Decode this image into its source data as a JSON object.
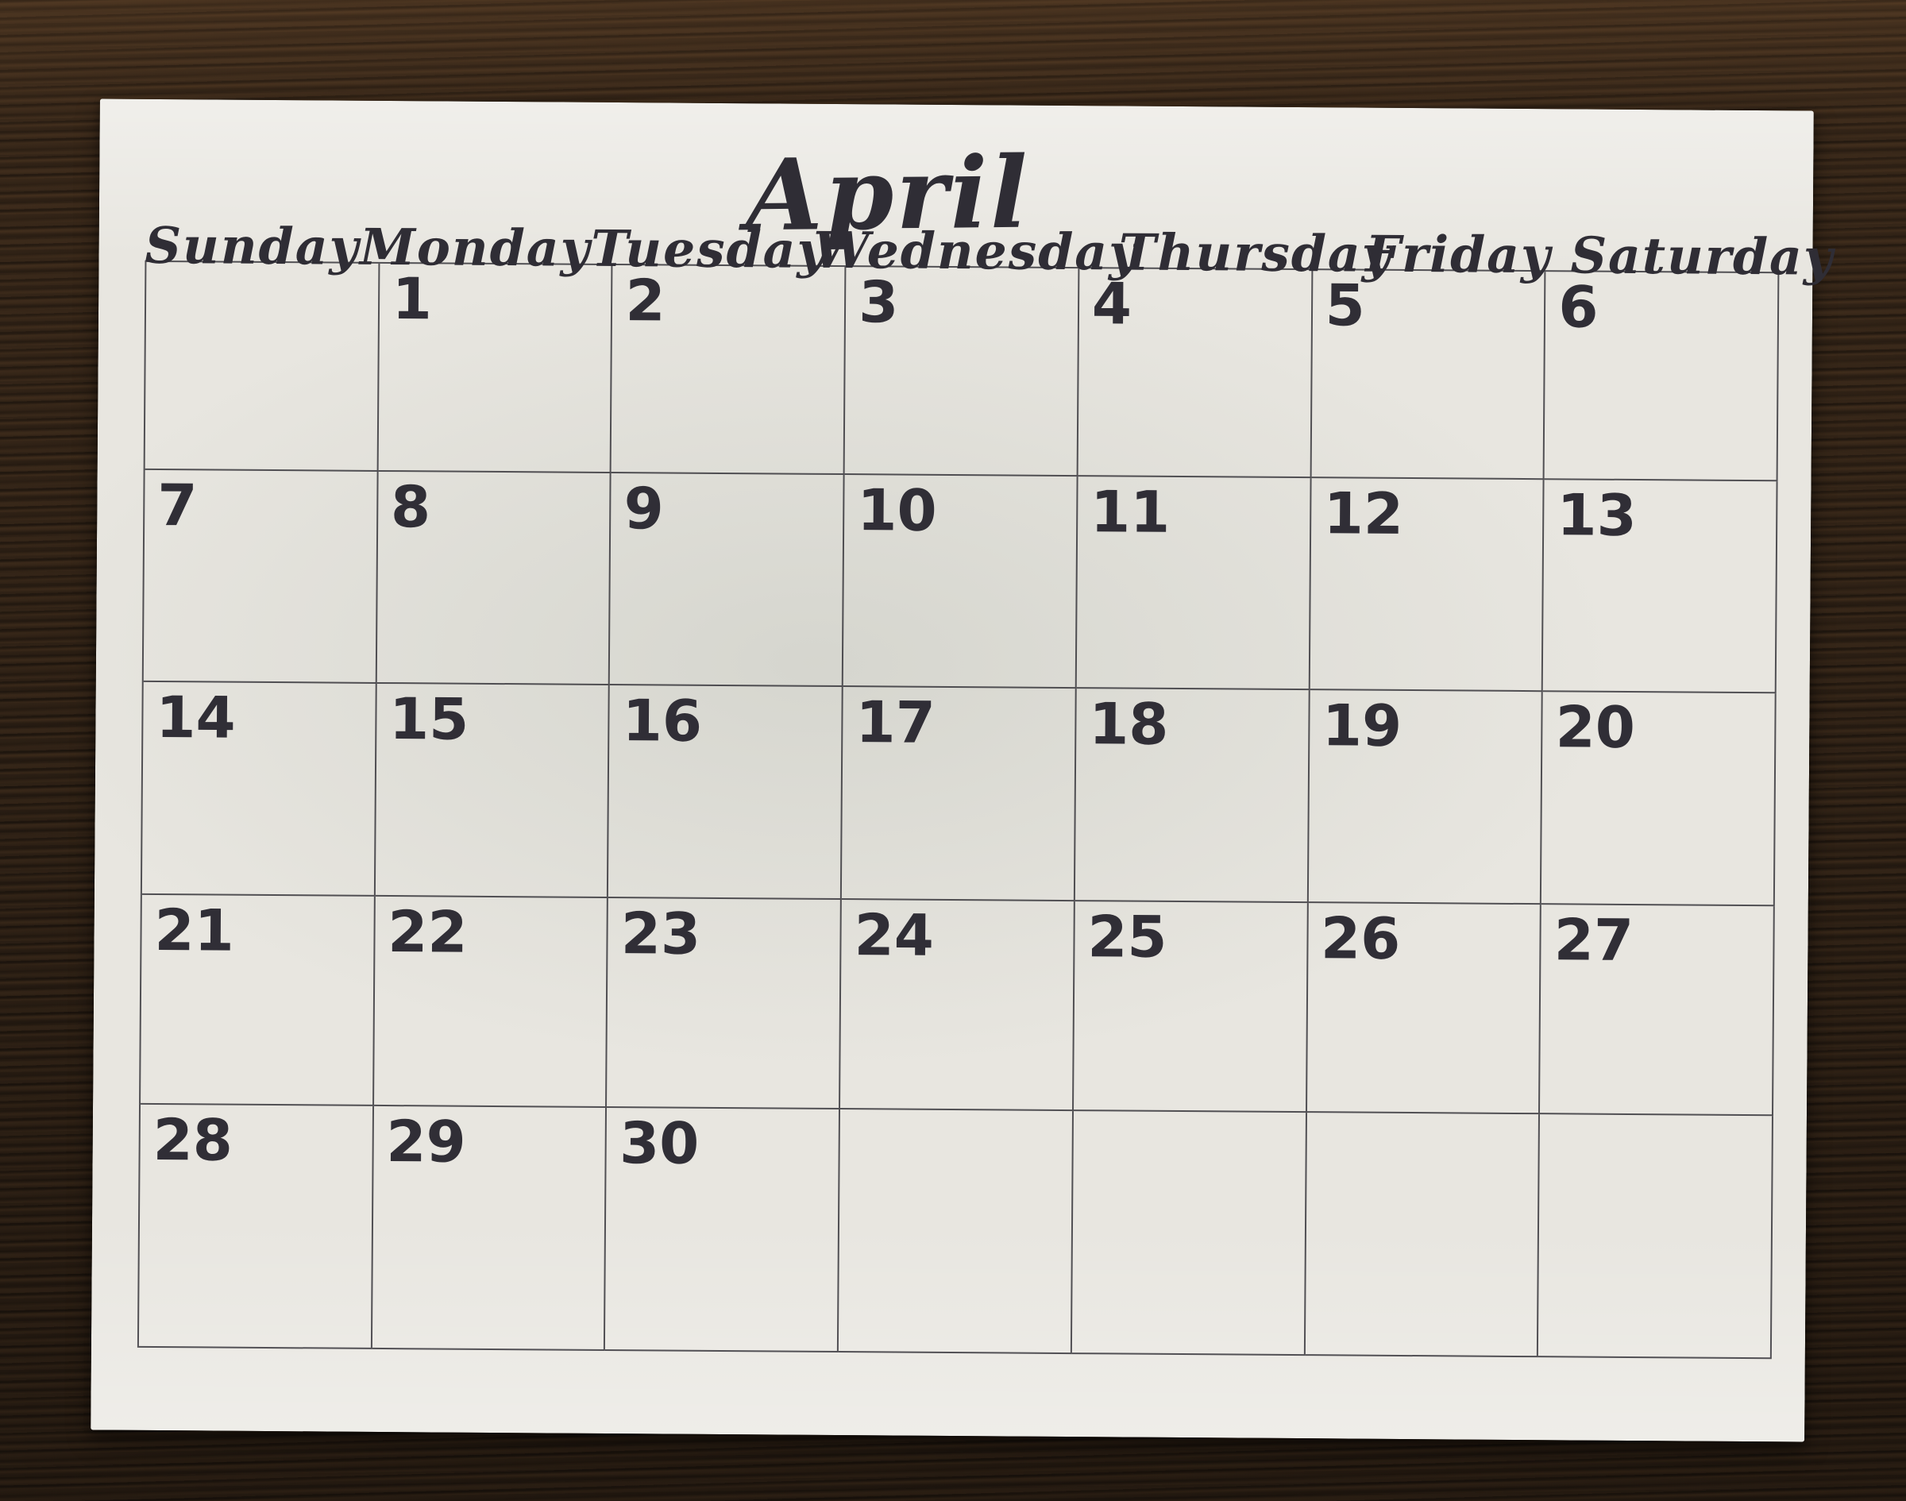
{
  "calendar": {
    "title": "April",
    "weekdays": [
      "Sunday",
      "Monday",
      "Tuesday",
      "Wednesday",
      "Thursday",
      "Friday",
      "Saturday"
    ],
    "weeks": [
      [
        "",
        "1",
        "2",
        "3",
        "4",
        "5",
        "6"
      ],
      [
        "7",
        "8",
        "9",
        "10",
        "11",
        "12",
        "13"
      ],
      [
        "14",
        "15",
        "16",
        "17",
        "18",
        "19",
        "20"
      ],
      [
        "21",
        "22",
        "23",
        "24",
        "25",
        "26",
        "27"
      ],
      [
        "28",
        "29",
        "30",
        "",
        "",
        "",
        ""
      ]
    ],
    "colors": {
      "ink": "#302e36",
      "paper": "#e8e6e0",
      "grid_line": "#38363e",
      "desk_wood": "#342518"
    }
  }
}
